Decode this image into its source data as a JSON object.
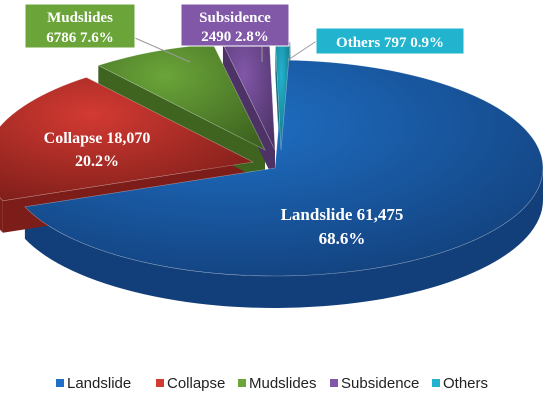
{
  "chart_data": {
    "type": "pie",
    "title": "",
    "legend_position": "bottom",
    "slices": [
      {
        "name": "Landslide",
        "value": 61475,
        "value_label": "61,475",
        "percent_label": "68.6%",
        "color": "#1f6fc4",
        "side": "#123f7a"
      },
      {
        "name": "Collapse",
        "value": 18070,
        "value_label": "18,070",
        "percent_label": "20.2%",
        "color": "#d23a32",
        "side": "#7d1d19"
      },
      {
        "name": "Mudslides",
        "value": 6786,
        "value_label": "6786",
        "percent_label": "7.6%",
        "color": "#6ba539",
        "side": "#3e6420"
      },
      {
        "name": "Subsidence",
        "value": 2490,
        "value_label": "2490",
        "percent_label": "2.8%",
        "color": "#8157a8",
        "side": "#4d3266"
      },
      {
        "name": "Others",
        "value": 797,
        "value_label": "797",
        "percent_label": "0.9%",
        "color": "#22b4cf",
        "side": "#126c7d"
      }
    ]
  }
}
